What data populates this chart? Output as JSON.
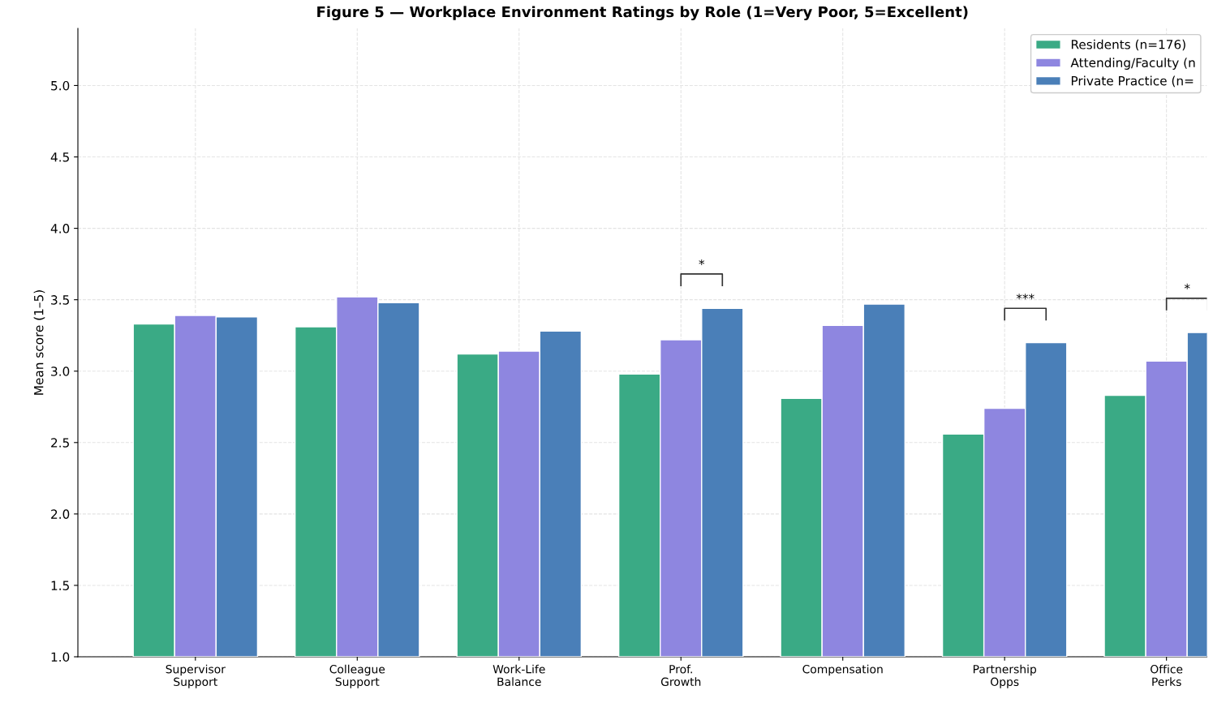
{
  "chart_data": {
    "type": "bar",
    "title": "Figure 5 — Workplace Environment Ratings by Role (1=Very Poor, 5=Excellent)",
    "ylabel": "Mean score (1–5)",
    "categories": [
      "Supervisor\nSupport",
      "Colleague\nSupport",
      "Work-Life\nBalance",
      "Prof.\nGrowth",
      "Compensation",
      "Partnership\nOpps",
      "Office\nPerks"
    ],
    "series": [
      {
        "name": "Residents (n=176)",
        "color": "#3aaa85",
        "values": [
          3.33,
          3.31,
          3.12,
          2.98,
          2.81,
          2.56,
          2.83
        ]
      },
      {
        "name": "Attending/Faculty (n",
        "color": "#8e86e0",
        "values": [
          3.39,
          3.52,
          3.14,
          3.22,
          3.32,
          2.74,
          3.07
        ]
      },
      {
        "name": "Private Practice (n=",
        "color": "#4a7fb8",
        "values": [
          3.38,
          3.48,
          3.28,
          3.44,
          3.47,
          3.2,
          3.27
        ]
      }
    ],
    "ylim": [
      1.0,
      5.4
    ],
    "yticks": [
      {
        "value": 1,
        "label": "1.0"
      },
      {
        "value": 1.5,
        "label": "1.5"
      },
      {
        "value": 2,
        "label": "2.0"
      },
      {
        "value": 2.5,
        "label": "2.5"
      },
      {
        "value": 3,
        "label": "3.0"
      },
      {
        "value": 3.5,
        "label": "3.5"
      },
      {
        "value": 4,
        "label": "4.0"
      },
      {
        "value": 4.5,
        "label": "4.5"
      },
      {
        "value": 5,
        "label": "5.0"
      }
    ],
    "annotations": [
      "*",
      "***",
      "*"
    ],
    "grid": true,
    "legend": "top right"
  }
}
